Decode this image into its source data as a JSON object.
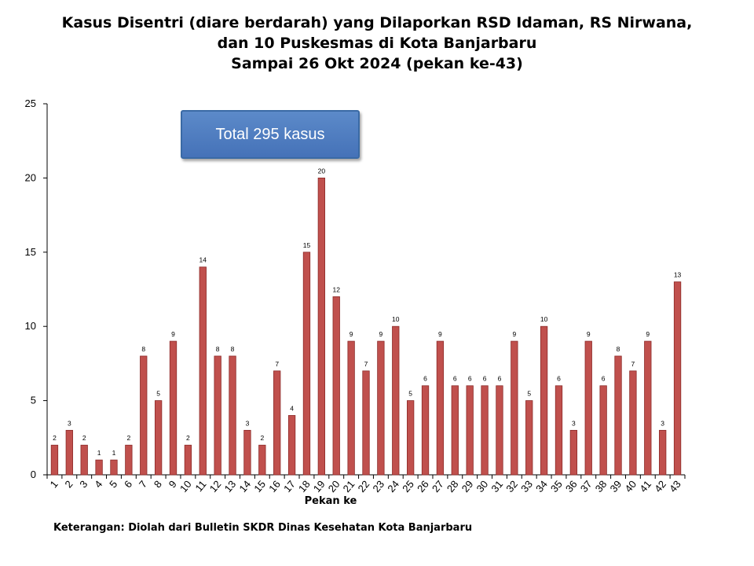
{
  "title": {
    "line1": "Kasus Disentri (diare berdarah) yang Dilaporkan RSD Idaman, RS Nirwana,",
    "line2": "dan 10 Puskesmas di Kota Banjarbaru",
    "line3": "Sampai 26 Okt 2024 (pekan ke-43)"
  },
  "callout": "Total 295 kasus",
  "footnote": "Keterangan: Diolah dari Bulletin SKDR Dinas Kesehatan Kota Banjarbaru",
  "colors": {
    "bar": "#c0504d",
    "bar_border": "#8c2a28"
  },
  "chart_data": {
    "type": "bar",
    "xlabel": "Pekan ke",
    "ylabel": "",
    "ylim": [
      0,
      25
    ],
    "yticks": [
      0,
      5,
      10,
      15,
      20,
      25
    ],
    "grid": false,
    "categories": [
      "1",
      "2",
      "3",
      "4",
      "5",
      "6",
      "7",
      "8",
      "9",
      "10",
      "11",
      "12",
      "13",
      "14",
      "15",
      "16",
      "17",
      "18",
      "19",
      "20",
      "21",
      "22",
      "23",
      "24",
      "25",
      "26",
      "27",
      "28",
      "29",
      "30",
      "31",
      "32",
      "33",
      "34",
      "35",
      "36",
      "37",
      "38",
      "39",
      "40",
      "41",
      "42",
      "43"
    ],
    "values": [
      2,
      3,
      2,
      1,
      1,
      2,
      8,
      5,
      9,
      2,
      14,
      8,
      8,
      3,
      2,
      7,
      4,
      15,
      20,
      12,
      9,
      7,
      9,
      10,
      5,
      6,
      9,
      6,
      6,
      6,
      6,
      9,
      5,
      10,
      6,
      3,
      9,
      6,
      8,
      7,
      9,
      3,
      13
    ]
  }
}
